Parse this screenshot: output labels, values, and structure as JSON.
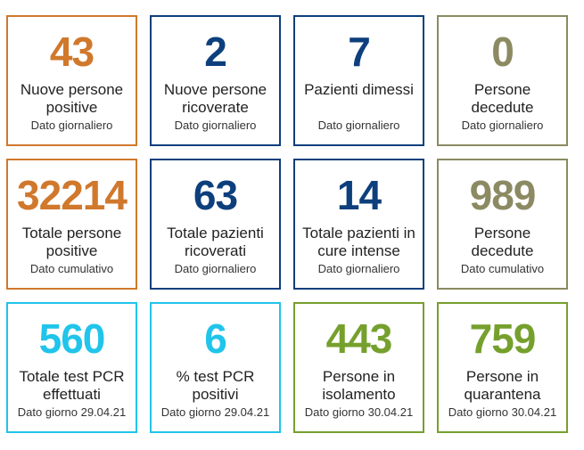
{
  "colors": {
    "orange": "#d0782c",
    "navy": "#0d3f7d",
    "olive": "#8b8a62",
    "cyan": "#21c4ea",
    "green": "#76a02d"
  },
  "cards": [
    {
      "value": "43",
      "label_line1": "Nuove persone",
      "label_line2": "positive",
      "sub": "Dato giornaliero"
    },
    {
      "value": "2",
      "label_line1": "Nuove persone",
      "label_line2": "ricoverate",
      "sub": "Dato giornaliero"
    },
    {
      "value": "7",
      "label_line1": "Pazienti dimessi",
      "label_line2": "",
      "sub": "Dato giornaliero"
    },
    {
      "value": "0",
      "label_line1": "Persone",
      "label_line2": "decedute",
      "sub": "Dato giornaliero"
    },
    {
      "value": "32214",
      "label_line1": "Totale persone",
      "label_line2": "positive",
      "sub": "Dato cumulativo"
    },
    {
      "value": "63",
      "label_line1": "Totale pazienti",
      "label_line2": "ricoverati",
      "sub": "Dato giornaliero"
    },
    {
      "value": "14",
      "label_line1": "Totale pazienti in",
      "label_line2": "cure intense",
      "sub": "Dato giornaliero"
    },
    {
      "value": "989",
      "label_line1": "Persone",
      "label_line2": "decedute",
      "sub": "Dato cumulativo"
    },
    {
      "value": "560",
      "label_line1": "Totale test PCR",
      "label_line2": "effettuati",
      "sub": "Dato giorno 29.04.21"
    },
    {
      "value": "6",
      "label_line1": "% test PCR",
      "label_line2": "positivi",
      "sub": "Dato giorno 29.04.21"
    },
    {
      "value": "443",
      "label_line1": "Persone in",
      "label_line2": "isolamento",
      "sub": "Dato giorno 30.04.21"
    },
    {
      "value": "759",
      "label_line1": "Persone in",
      "label_line2": "quarantena",
      "sub": "Dato giorno 30.04.21"
    }
  ]
}
